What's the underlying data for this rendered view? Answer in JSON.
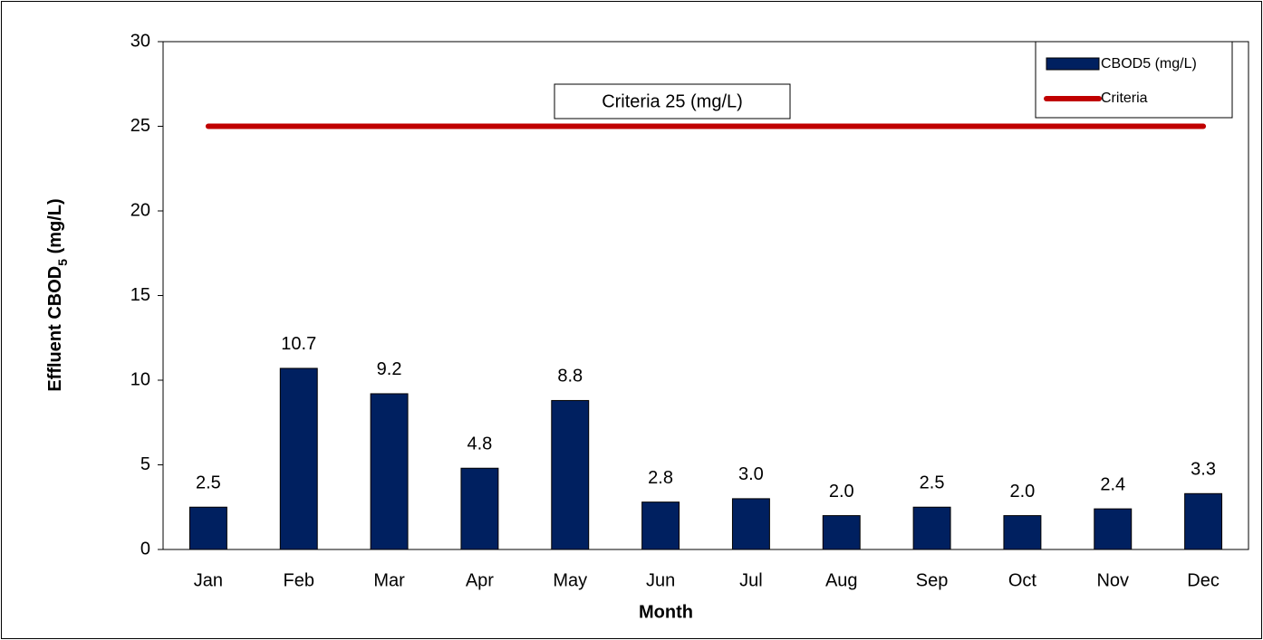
{
  "chart_data": {
    "type": "bar",
    "categories": [
      "Jan",
      "Feb",
      "Mar",
      "Apr",
      "May",
      "Jun",
      "Jul",
      "Aug",
      "Sep",
      "Oct",
      "Nov",
      "Dec"
    ],
    "series": [
      {
        "name": "CBOD5 (mg/L)",
        "type": "bar",
        "color": "#002060",
        "values": [
          2.5,
          10.7,
          9.2,
          4.8,
          8.8,
          2.8,
          3.0,
          2.0,
          2.5,
          2.0,
          2.4,
          3.3
        ],
        "value_labels": [
          "2.5",
          "10.7",
          "9.2",
          "4.8",
          "8.8",
          "2.8",
          "3.0",
          "2.0",
          "2.5",
          "2.0",
          "2.4",
          "3.3"
        ]
      },
      {
        "name": "Criteria",
        "type": "line",
        "color": "#c00000",
        "values": [
          25,
          25,
          25,
          25,
          25,
          25,
          25,
          25,
          25,
          25,
          25,
          25
        ]
      }
    ],
    "xlabel": "Month",
    "ylabel": {
      "text": "Effluent CBOD",
      "subscript": "5",
      "suffix": " (mg/L)"
    },
    "annotation": "Criteria 25 (mg/L)",
    "ylim": [
      0,
      30
    ],
    "yticks": [
      0,
      5,
      10,
      15,
      20,
      25,
      30
    ],
    "grid": false,
    "legend": "upper right"
  }
}
